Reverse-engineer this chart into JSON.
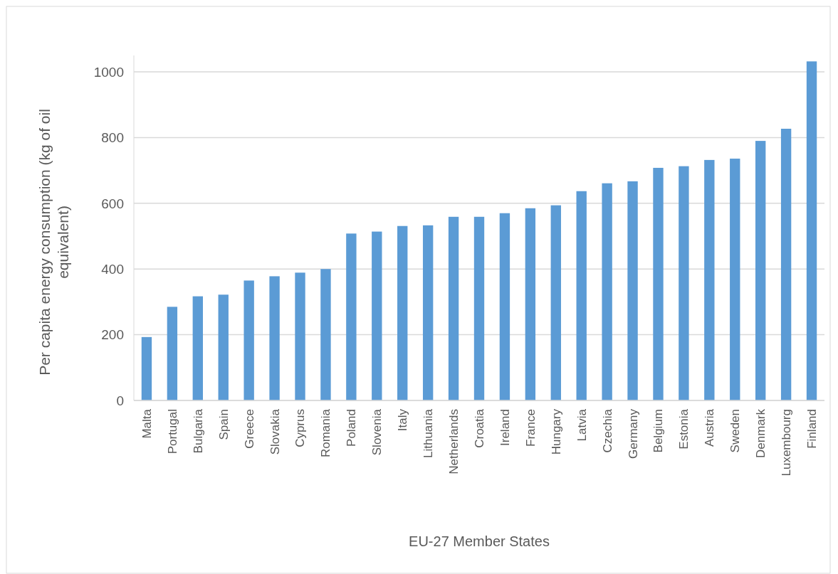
{
  "chart_data": {
    "type": "bar",
    "xlabel": "EU-27 Member States",
    "ylabel": "Per capita energy consumption (kg of oil equivalent)",
    "categories": [
      "Malta",
      "Portugal",
      "Bulgaria",
      "Spain",
      "Greece",
      "Slovakia",
      "Cyprus",
      "Romania",
      "Poland",
      "Slovenia",
      "Italy",
      "Lithuania",
      "Netherlands",
      "Croatia",
      "Ireland",
      "France",
      "Hungary",
      "Latvia",
      "Czechia",
      "Germany",
      "Belgium",
      "Estonia",
      "Austria",
      "Sweden",
      "Denmark",
      "Luxembourg",
      "Finland"
    ],
    "values": [
      193,
      285,
      317,
      322,
      365,
      378,
      389,
      400,
      508,
      514,
      531,
      533,
      559,
      559,
      570,
      585,
      594,
      637,
      661,
      667,
      708,
      713,
      732,
      736,
      790,
      827,
      1032
    ],
    "color": "#5b9bd5",
    "ylim": [
      0,
      1050
    ],
    "yticks": [
      0,
      200,
      400,
      600,
      800,
      1000
    ],
    "grid": "y"
  }
}
